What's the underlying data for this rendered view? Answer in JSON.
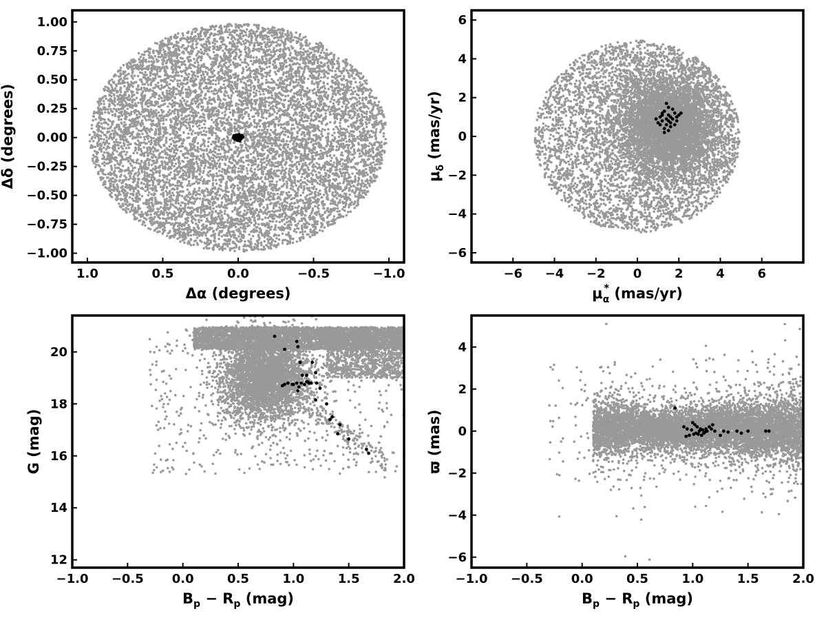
{
  "chart_data": [
    {
      "type": "scatter",
      "title": "",
      "xlabel": "Δα (degrees)",
      "ylabel": "Δδ (degrees)",
      "xlim": [
        1.1,
        -1.1
      ],
      "ylim": [
        -1.08,
        1.1
      ],
      "x_inverted": true,
      "grid": false,
      "xticks": [
        1.0,
        0.5,
        0.0,
        -0.5,
        -1.0
      ],
      "xtick_labels": [
        "1.0",
        "0.5",
        "0.0",
        "−0.5",
        "−1.0"
      ],
      "yticks": [
        1.0,
        0.75,
        0.5,
        0.25,
        0.0,
        -0.25,
        -0.5,
        -0.75,
        -1.0
      ],
      "ytick_labels": [
        "1.00",
        "0.75",
        "0.50",
        "0.25",
        "0.00",
        "−0.25",
        "−0.50",
        "−0.75",
        "−1.00"
      ],
      "field_sample": {
        "color": "#999999",
        "shape": "disk",
        "center": [
          0.0,
          0.0
        ],
        "radius": 1.0,
        "approx_count": 9000
      },
      "members": {
        "color": "#000000",
        "points": [
          [
            0.0,
            0.0
          ],
          [
            0.01,
            0.01
          ],
          [
            -0.01,
            0.0
          ],
          [
            0.02,
            -0.01
          ],
          [
            -0.015,
            0.015
          ],
          [
            0.005,
            -0.02
          ],
          [
            0.025,
            0.01
          ],
          [
            -0.02,
            -0.01
          ],
          [
            0.015,
            0.02
          ],
          [
            -0.005,
            0.025
          ],
          [
            0.0,
            -0.015
          ],
          [
            0.03,
            0.0
          ],
          [
            -0.03,
            0.005
          ],
          [
            0.012,
            -0.008
          ],
          [
            -0.008,
            -0.012
          ],
          [
            0.018,
            0.004
          ],
          [
            -0.004,
            0.008
          ],
          [
            0.007,
            0.014
          ],
          [
            -0.012,
            -0.02
          ],
          [
            0.022,
            -0.015
          ],
          [
            -0.025,
            0.018
          ],
          [
            0.009,
            0.022
          ],
          [
            -0.018,
            0.0
          ],
          [
            0.003,
            -0.025
          ],
          [
            0.028,
            0.015
          ],
          [
            -0.01,
            -0.028
          ],
          [
            0.016,
            -0.002
          ],
          [
            -0.002,
            0.003
          ]
        ]
      }
    },
    {
      "type": "scatter",
      "title": "",
      "xlabel": "μα* (mas/yr)",
      "xlabel_main": "μ",
      "xlabel_sub": "α",
      "xlabel_sup": "*",
      "xlabel_unit": " (mas/yr)",
      "ylabel": "μδ (mas/yr)",
      "ylabel_main": "μ",
      "ylabel_sub": "δ",
      "ylabel_unit": " (mas/yr)",
      "xlim": [
        -8,
        8
      ],
      "ylim": [
        -6.5,
        6.5
      ],
      "grid": false,
      "xticks": [
        -6,
        -4,
        -2,
        0,
        2,
        4,
        6
      ],
      "xtick_labels": [
        "−6",
        "−4",
        "−2",
        "0",
        "2",
        "4",
        "6"
      ],
      "yticks": [
        6,
        4,
        2,
        0,
        -2,
        -4,
        -6
      ],
      "ytick_labels": [
        "6",
        "4",
        "2",
        "0",
        "−2",
        "−4",
        "−6"
      ],
      "field_sample": {
        "color": "#999999",
        "shape": "disk",
        "center": [
          0.0,
          0.0
        ],
        "radius": 5.0,
        "dense_core_center": [
          1.5,
          0.5
        ],
        "approx_count": 9000
      },
      "members": {
        "color": "#000000",
        "points": [
          [
            1.3,
            1.3
          ],
          [
            1.5,
            1.1
          ],
          [
            1.7,
            0.9
          ],
          [
            1.2,
            0.8
          ],
          [
            1.4,
            0.6
          ],
          [
            1.6,
            0.7
          ],
          [
            1.1,
            1.0
          ],
          [
            1.8,
            1.2
          ],
          [
            1.5,
            1.5
          ],
          [
            1.3,
            0.4
          ],
          [
            1.9,
            0.8
          ],
          [
            1.0,
            0.7
          ],
          [
            2.0,
            1.1
          ],
          [
            1.6,
            1.0
          ],
          [
            1.4,
            0.9
          ],
          [
            1.2,
            1.2
          ],
          [
            1.7,
            1.4
          ],
          [
            1.3,
            0.2
          ],
          [
            1.5,
            0.8
          ],
          [
            0.9,
            0.9
          ],
          [
            2.1,
            1.2
          ],
          [
            1.8,
            0.6
          ],
          [
            1.4,
            1.7
          ],
          [
            1.6,
            0.5
          ],
          [
            1.1,
            0.6
          ],
          [
            1.9,
            1.0
          ],
          [
            1.5,
            0.3
          ],
          [
            1.2,
            1.1
          ]
        ]
      }
    },
    {
      "type": "scatter",
      "title": "",
      "xlabel": "Bp − Rp (mag)",
      "xlabel_parts": [
        "B",
        "p",
        " − R",
        "p",
        " (mag)"
      ],
      "ylabel": "G (mag)",
      "xlim": [
        -1.0,
        2.0
      ],
      "ylim": [
        11.7,
        21.4
      ],
      "y_inverted": true,
      "grid": false,
      "xticks": [
        -1.0,
        -0.5,
        0.0,
        0.5,
        1.0,
        1.5,
        2.0
      ],
      "xtick_labels": [
        "−1.0",
        "−0.5",
        "0.0",
        "0.5",
        "1.0",
        "1.5",
        "2.0"
      ],
      "yticks": [
        20,
        18,
        16,
        14,
        12
      ],
      "ytick_labels": [
        "20",
        "18",
        "16",
        "14",
        "12"
      ],
      "field_sample": {
        "color": "#999999",
        "approx_count": 9000
      },
      "members": {
        "color": "#000000",
        "points": [
          [
            0.83,
            20.6
          ],
          [
            1.03,
            20.4
          ],
          [
            0.92,
            20.1
          ],
          [
            1.04,
            20.2
          ],
          [
            1.06,
            19.6
          ],
          [
            1.17,
            19.6
          ],
          [
            1.2,
            19.2
          ],
          [
            1.08,
            19.1
          ],
          [
            1.12,
            19.1
          ],
          [
            1.03,
            18.8
          ],
          [
            1.0,
            18.75
          ],
          [
            0.95,
            18.8
          ],
          [
            0.92,
            18.75
          ],
          [
            1.05,
            18.65
          ],
          [
            1.07,
            18.8
          ],
          [
            1.1,
            18.75
          ],
          [
            1.12,
            18.85
          ],
          [
            1.14,
            18.8
          ],
          [
            1.16,
            18.8
          ],
          [
            1.21,
            18.8
          ],
          [
            1.24,
            18.6
          ],
          [
            0.9,
            18.7
          ],
          [
            0.99,
            18.75
          ],
          [
            1.04,
            18.5
          ],
          [
            1.13,
            18.85
          ],
          [
            1.2,
            18.15
          ],
          [
            1.3,
            18.0
          ],
          [
            1.35,
            17.5
          ],
          [
            1.33,
            17.4
          ],
          [
            1.42,
            17.2
          ],
          [
            1.4,
            16.85
          ],
          [
            1.5,
            16.65
          ],
          [
            1.66,
            16.25
          ],
          [
            1.68,
            16.1
          ]
        ]
      }
    },
    {
      "type": "scatter",
      "title": "",
      "xlabel": "Bp − Rp (mag)",
      "xlabel_parts": [
        "B",
        "p",
        " − R",
        "p",
        " (mag)"
      ],
      "ylabel": "ϖ (mas)",
      "xlim": [
        -1.0,
        2.0
      ],
      "ylim": [
        -6.5,
        5.5
      ],
      "grid": false,
      "xticks": [
        -1.0,
        -0.5,
        0.0,
        0.5,
        1.0,
        1.5,
        2.0
      ],
      "xtick_labels": [
        "−1.0",
        "−0.5",
        "0.0",
        "0.5",
        "1.0",
        "1.5",
        "2.0"
      ],
      "yticks": [
        4,
        2,
        0,
        -2,
        -4,
        -6
      ],
      "ytick_labels": [
        "4",
        "2",
        "0",
        "−2",
        "−4",
        "−6"
      ],
      "field_sample": {
        "color": "#999999",
        "approx_count": 9000
      },
      "members": {
        "color": "#000000",
        "points": [
          [
            0.84,
            1.1
          ],
          [
            0.92,
            0.2
          ],
          [
            0.95,
            0.1
          ],
          [
            0.97,
            -0.2
          ],
          [
            1.0,
            0.4
          ],
          [
            1.02,
            0.3
          ],
          [
            1.03,
            -0.1
          ],
          [
            1.05,
            -0.15
          ],
          [
            1.06,
            0.0
          ],
          [
            1.07,
            0.1
          ],
          [
            1.08,
            -0.2
          ],
          [
            1.09,
            0.05
          ],
          [
            1.1,
            -0.1
          ],
          [
            1.12,
            0.1
          ],
          [
            1.13,
            0.0
          ],
          [
            1.15,
            0.2
          ],
          [
            1.17,
            0.1
          ],
          [
            1.18,
            0.3
          ],
          [
            1.2,
            0.0
          ],
          [
            1.25,
            -0.2
          ],
          [
            1.28,
            0.0
          ],
          [
            1.32,
            -0.05
          ],
          [
            1.4,
            0.0
          ],
          [
            1.44,
            -0.1
          ],
          [
            1.5,
            0.0
          ],
          [
            1.66,
            0.0
          ],
          [
            1.69,
            0.0
          ],
          [
            0.99,
            0.05
          ],
          [
            1.01,
            -0.15
          ],
          [
            1.04,
            0.2
          ],
          [
            1.11,
            -0.05
          ],
          [
            0.94,
            -0.25
          ]
        ]
      }
    }
  ]
}
